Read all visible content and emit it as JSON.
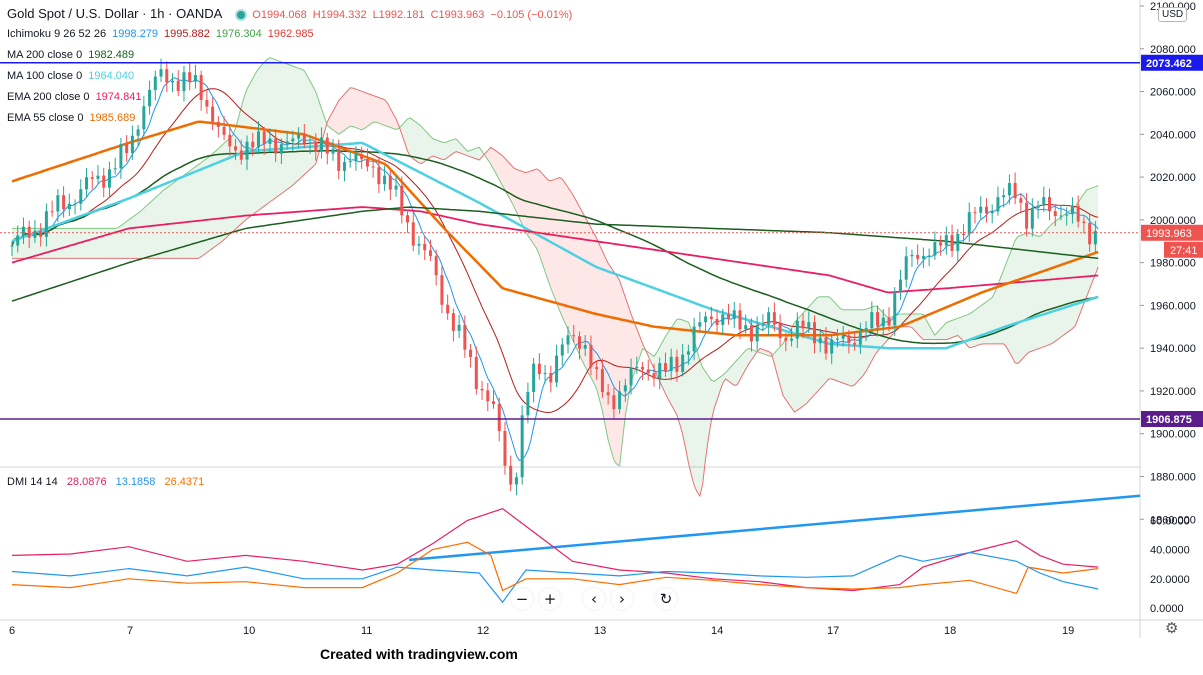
{
  "chart_data": {
    "type": "candlestick",
    "symbol_label": "Gold Spot / U.S. Dollar · 1h · OANDA",
    "ohlc": {
      "o": "O1994.068",
      "h": "H1994.332",
      "l": "L1992.181",
      "c": "C1993.963",
      "chg": "−0.105 (−0.01%)"
    },
    "indicators": [
      {
        "label": "Ichimoku 9 26 52 26",
        "values": [
          {
            "v": "1998.279",
            "color": "#2196f3"
          },
          {
            "v": "1995.882",
            "color": "#b71c1c"
          },
          {
            "v": "1976.304",
            "color": "#43a047"
          },
          {
            "v": "1962.985",
            "color": "#e53935"
          }
        ]
      },
      {
        "label": "MA 200 close 0",
        "values": [
          {
            "v": "1982.489",
            "color": "#1b5e20"
          }
        ]
      },
      {
        "label": "MA 100 close 0",
        "values": [
          {
            "v": "1964.040",
            "color": "#4dd0e1"
          }
        ]
      },
      {
        "label": "EMA 200 close 0",
        "values": [
          {
            "v": "1974.841",
            "color": "#e91e63"
          }
        ]
      },
      {
        "label": "EMA 55 close 0",
        "values": [
          {
            "v": "1985.689",
            "color": "#ef6c00"
          }
        ]
      }
    ],
    "currency": "USD",
    "price_axis": {
      "min": 1840,
      "max": 2100,
      "ticks": [
        "2100.000",
        "2080.000",
        "2060.000",
        "2040.000",
        "2020.000",
        "2000.000",
        "1980.000",
        "1960.000",
        "1940.000",
        "1920.000",
        "1900.000",
        "1880.000",
        "1860.000"
      ]
    },
    "time_axis": {
      "labels": [
        "6",
        "7",
        "10",
        "11",
        "12",
        "13",
        "14",
        "17",
        "18",
        "19"
      ]
    },
    "hlines": [
      {
        "price": 2073.462,
        "label": "2073.462",
        "color": "#1a1aef"
      },
      {
        "price": 1906.875,
        "label": "1906.875",
        "color": "#5b1d8c"
      }
    ],
    "last_price": {
      "label": "1993.963",
      "price": 1993.963,
      "color": "#ef5350"
    },
    "countdown": "27:41",
    "trendline": {
      "from": [
        3.4,
        1841
      ],
      "to": [
        10.2,
        1871
      ],
      "color": "#2196f3"
    },
    "close_series": [
      [
        0,
        1988
      ],
      [
        0.2,
        1996
      ],
      [
        0.4,
        2006
      ],
      [
        0.6,
        2014
      ],
      [
        0.8,
        2022
      ],
      [
        1.0,
        2032
      ],
      [
        1.1,
        2052
      ],
      [
        1.2,
        2062
      ],
      [
        1.3,
        2068
      ],
      [
        1.4,
        2066
      ],
      [
        1.5,
        2064
      ],
      [
        1.6,
        2062
      ],
      [
        1.7,
        2052
      ],
      [
        1.8,
        2036
      ],
      [
        1.9,
        2032
      ],
      [
        2.0,
        2036
      ],
      [
        2.1,
        2034
      ],
      [
        2.2,
        2038
      ],
      [
        2.3,
        2036
      ],
      [
        2.4,
        2034
      ],
      [
        2.5,
        2040
      ],
      [
        2.6,
        2036
      ],
      [
        2.7,
        2030
      ],
      [
        2.8,
        2028
      ],
      [
        2.9,
        2030
      ],
      [
        3.0,
        2024
      ],
      [
        3.1,
        2026
      ],
      [
        3.2,
        2018
      ],
      [
        3.3,
        2008
      ],
      [
        3.4,
        1998
      ],
      [
        3.5,
        1986
      ],
      [
        3.6,
        1978
      ],
      [
        3.7,
        1962
      ],
      [
        3.8,
        1948
      ],
      [
        3.9,
        1936
      ],
      [
        4.0,
        1924
      ],
      [
        4.1,
        1914
      ],
      [
        4.15,
        1904
      ],
      [
        4.2,
        1890
      ],
      [
        4.25,
        1880
      ],
      [
        4.3,
        1876
      ],
      [
        4.35,
        1900
      ],
      [
        4.4,
        1916
      ],
      [
        4.5,
        1932
      ],
      [
        4.6,
        1928
      ],
      [
        4.7,
        1938
      ],
      [
        4.8,
        1946
      ],
      [
        4.9,
        1944
      ],
      [
        5.0,
        1924
      ],
      [
        5.1,
        1916
      ],
      [
        5.2,
        1920
      ],
      [
        5.3,
        1926
      ],
      [
        5.4,
        1932
      ],
      [
        5.5,
        1930
      ],
      [
        5.6,
        1928
      ],
      [
        5.7,
        1934
      ],
      [
        5.8,
        1944
      ],
      [
        5.9,
        1950
      ],
      [
        6.0,
        1956
      ],
      [
        6.1,
        1956
      ],
      [
        6.2,
        1950
      ],
      [
        6.3,
        1950
      ],
      [
        6.4,
        1950
      ],
      [
        6.5,
        1952
      ],
      [
        6.6,
        1946
      ],
      [
        6.7,
        1948
      ],
      [
        6.8,
        1948
      ],
      [
        6.9,
        1948
      ],
      [
        7.0,
        1938
      ],
      [
        7.1,
        1944
      ],
      [
        7.2,
        1946
      ],
      [
        7.3,
        1948
      ],
      [
        7.4,
        1952
      ],
      [
        7.5,
        1956
      ],
      [
        7.6,
        1970
      ],
      [
        7.7,
        1984
      ],
      [
        7.8,
        1986
      ],
      [
        7.9,
        1984
      ],
      [
        8.0,
        1990
      ],
      [
        8.1,
        1994
      ],
      [
        8.2,
        1998
      ],
      [
        8.3,
        2006
      ],
      [
        8.4,
        2008
      ],
      [
        8.5,
        2010
      ],
      [
        8.6,
        2014
      ],
      [
        8.7,
        2000
      ],
      [
        8.8,
        2006
      ],
      [
        8.9,
        2006
      ],
      [
        9.0,
        2004
      ],
      [
        9.1,
        2000
      ],
      [
        9.2,
        1996
      ],
      [
        9.3,
        1994
      ]
    ],
    "dmi": {
      "label": "DMI 14 14",
      "values": [
        {
          "v": "28.0876",
          "color": "#e91e63"
        },
        {
          "v": "13.1858",
          "color": "#2196f3"
        },
        {
          "v": "26.4371",
          "color": "#ff6d00"
        }
      ],
      "ticks": [
        "60.0000",
        "40.0000",
        "20.0000",
        "0.0000"
      ],
      "plus_di": [
        [
          0,
          25
        ],
        [
          0.5,
          22
        ],
        [
          1,
          27
        ],
        [
          1.5,
          22
        ],
        [
          2,
          28
        ],
        [
          2.5,
          20
        ],
        [
          3,
          20
        ],
        [
          3.3,
          28
        ],
        [
          3.6,
          26
        ],
        [
          4,
          24
        ],
        [
          4.2,
          4
        ],
        [
          4.4,
          26
        ],
        [
          4.8,
          24
        ],
        [
          5.2,
          22
        ],
        [
          5.6,
          25
        ],
        [
          6,
          24
        ],
        [
          6.4,
          22
        ],
        [
          6.8,
          21
        ],
        [
          7.2,
          22
        ],
        [
          7.6,
          36
        ],
        [
          7.8,
          32
        ],
        [
          8.2,
          38
        ],
        [
          8.6,
          32
        ],
        [
          8.8,
          24
        ],
        [
          9.0,
          18
        ],
        [
          9.3,
          13
        ]
      ],
      "minus_di": [
        [
          0,
          16
        ],
        [
          0.5,
          14
        ],
        [
          1,
          20
        ],
        [
          1.5,
          17
        ],
        [
          2,
          18
        ],
        [
          2.5,
          14
        ],
        [
          3,
          14
        ],
        [
          3.3,
          24
        ],
        [
          3.6,
          40
        ],
        [
          3.9,
          45
        ],
        [
          4.1,
          36
        ],
        [
          4.2,
          12
        ],
        [
          4.4,
          20
        ],
        [
          4.8,
          20
        ],
        [
          5.2,
          16
        ],
        [
          5.6,
          21
        ],
        [
          6,
          19
        ],
        [
          6.4,
          16
        ],
        [
          6.8,
          14
        ],
        [
          7.2,
          13
        ],
        [
          7.6,
          14
        ],
        [
          7.8,
          16
        ],
        [
          8.2,
          19
        ],
        [
          8.6,
          10
        ],
        [
          8.7,
          28
        ],
        [
          9.0,
          24
        ],
        [
          9.3,
          27
        ]
      ],
      "adx": [
        [
          0,
          36
        ],
        [
          0.5,
          37
        ],
        [
          1,
          42
        ],
        [
          1.5,
          32
        ],
        [
          2,
          36
        ],
        [
          2.5,
          32
        ],
        [
          3,
          26
        ],
        [
          3.3,
          30
        ],
        [
          3.6,
          44
        ],
        [
          3.9,
          60
        ],
        [
          4.2,
          68
        ],
        [
          4.5,
          50
        ],
        [
          4.8,
          32
        ],
        [
          5.2,
          26
        ],
        [
          5.6,
          24
        ],
        [
          6,
          20
        ],
        [
          6.4,
          18
        ],
        [
          6.8,
          14
        ],
        [
          7.2,
          12
        ],
        [
          7.6,
          16
        ],
        [
          7.8,
          28
        ],
        [
          8.2,
          38
        ],
        [
          8.6,
          46
        ],
        [
          8.8,
          36
        ],
        [
          9.0,
          30
        ],
        [
          9.3,
          28
        ]
      ]
    }
  },
  "ui": {
    "nav_buttons": [
      {
        "name": "zoom-out-button",
        "glyph": "−"
      },
      {
        "name": "zoom-in-button",
        "glyph": "+"
      },
      {
        "name": "scroll-left-button",
        "glyph": "‹"
      },
      {
        "name": "scroll-right-button",
        "glyph": "›"
      },
      {
        "name": "reset-chart-button",
        "glyph": "↻"
      }
    ],
    "credit": "Created with tradingview.com",
    "settings_icon": "gear-icon"
  }
}
